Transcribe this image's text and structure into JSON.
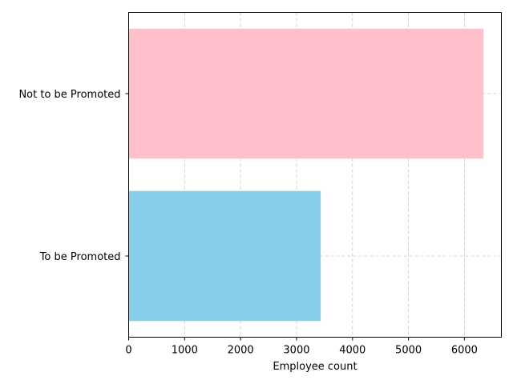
{
  "chart_data": {
    "type": "bar",
    "orientation": "horizontal",
    "title": "",
    "xlabel": "Employee count",
    "ylabel": "",
    "categories": [
      "To be Promoted",
      "Not to be Promoted"
    ],
    "values": [
      3430,
      6340
    ],
    "colors": [
      "#87CEEB",
      "#FFC0CB"
    ],
    "xlim": [
      0,
      6660
    ],
    "xticks": [
      0,
      1000,
      2000,
      3000,
      4000,
      5000,
      6000
    ],
    "grid": true
  }
}
